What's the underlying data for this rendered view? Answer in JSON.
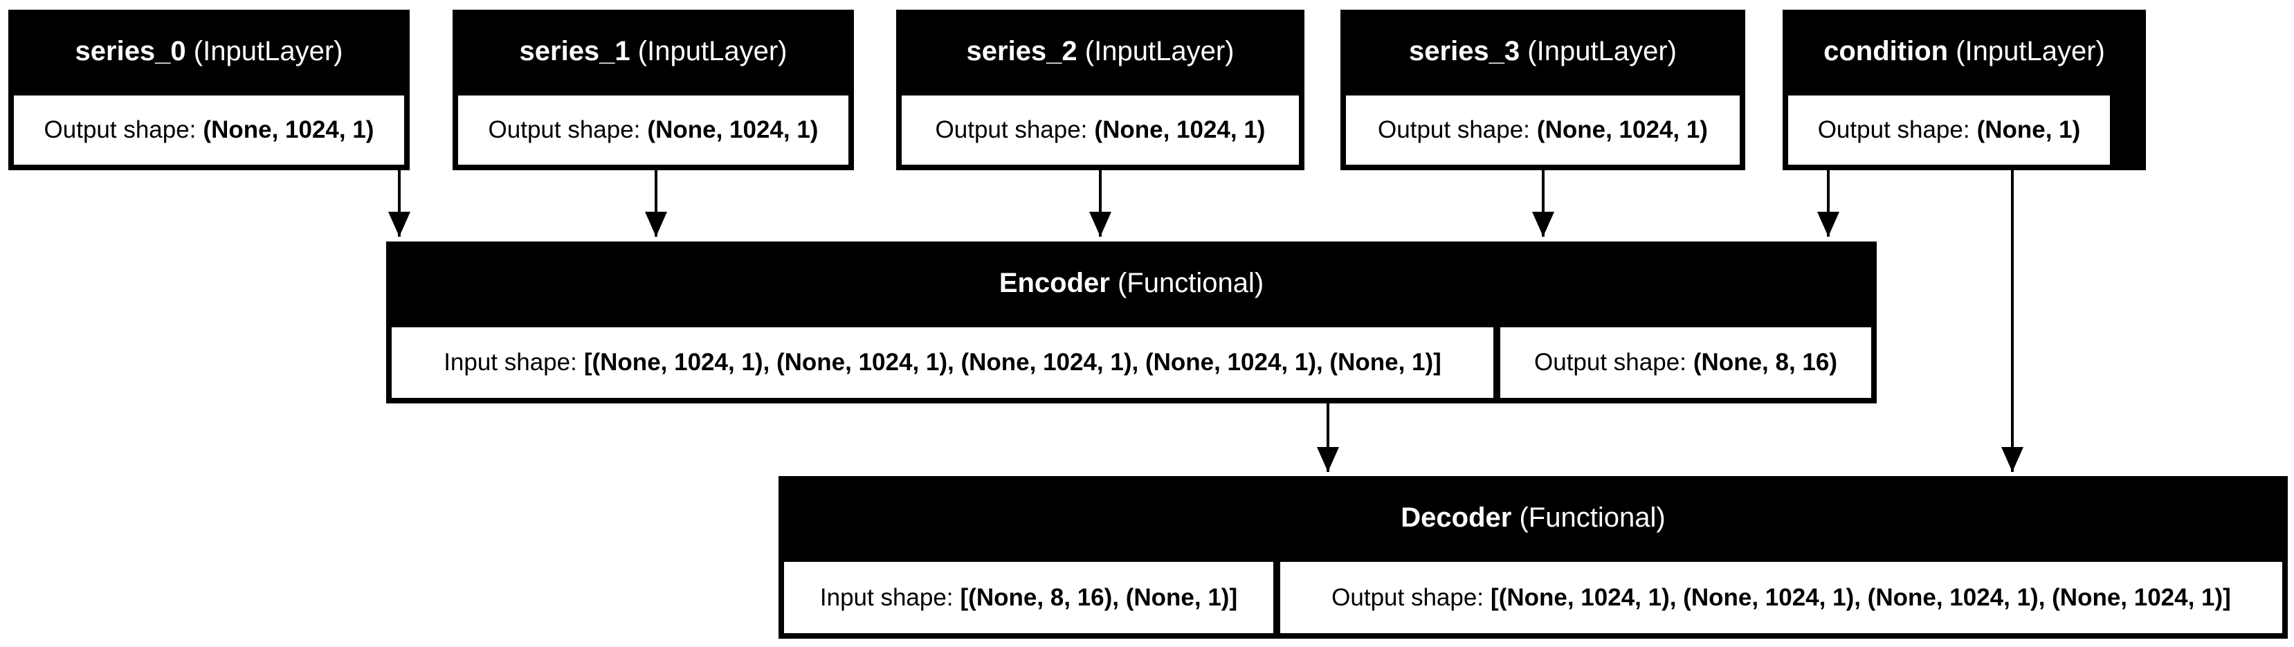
{
  "nodes": {
    "series_0": {
      "name": "series_0",
      "type": "(InputLayer)",
      "output_label": "Output shape:",
      "output_value": "(None, 1024, 1)"
    },
    "series_1": {
      "name": "series_1",
      "type": "(InputLayer)",
      "output_label": "Output shape:",
      "output_value": "(None, 1024, 1)"
    },
    "series_2": {
      "name": "series_2",
      "type": "(InputLayer)",
      "output_label": "Output shape:",
      "output_value": "(None, 1024, 1)"
    },
    "series_3": {
      "name": "series_3",
      "type": "(InputLayer)",
      "output_label": "Output shape:",
      "output_value": "(None, 1024, 1)"
    },
    "condition": {
      "name": "condition",
      "type": "(InputLayer)",
      "output_label": "Output shape:",
      "output_value": "(None, 1)"
    },
    "encoder": {
      "name": "Encoder",
      "type": "(Functional)",
      "input_label": "Input shape:",
      "input_value": "[(None, 1024, 1), (None, 1024, 1), (None, 1024, 1), (None, 1024, 1), (None, 1)]",
      "output_label": "Output shape:",
      "output_value": "(None, 8, 16)"
    },
    "decoder": {
      "name": "Decoder",
      "type": "(Functional)",
      "input_label": "Input shape:",
      "input_value": "[(None, 8, 16), (None, 1)]",
      "output_label": "Output shape:",
      "output_value": "[(None, 1024, 1), (None, 1024, 1), (None, 1024, 1), (None, 1024, 1)]"
    }
  },
  "edges": [
    {
      "from": "series_0",
      "to": "encoder"
    },
    {
      "from": "series_1",
      "to": "encoder"
    },
    {
      "from": "series_2",
      "to": "encoder"
    },
    {
      "from": "series_3",
      "to": "encoder"
    },
    {
      "from": "condition",
      "to": "encoder"
    },
    {
      "from": "encoder",
      "to": "decoder"
    },
    {
      "from": "condition",
      "to": "decoder"
    }
  ]
}
